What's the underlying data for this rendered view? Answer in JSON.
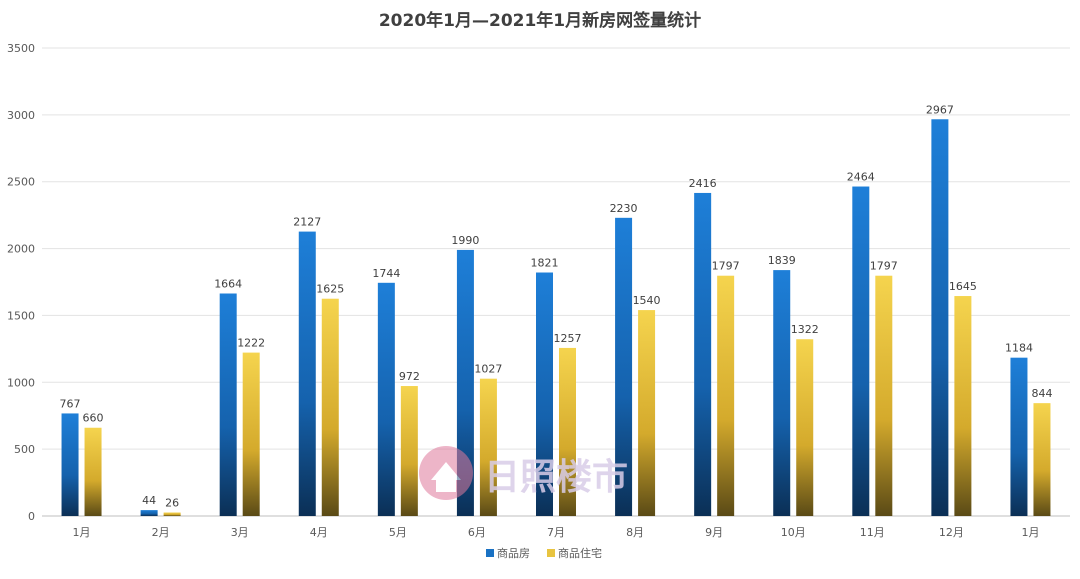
{
  "chart_data": {
    "type": "bar",
    "title": "2020年1月—2021年1月新房网签量统计",
    "categories": [
      "1月",
      "2月",
      "3月",
      "4月",
      "5月",
      "6月",
      "7月",
      "8月",
      "9月",
      "10月",
      "11月",
      "12月",
      "1月"
    ],
    "series": [
      {
        "name": "商品房",
        "values": [
          767,
          44,
          1664,
          2127,
          1744,
          1990,
          1821,
          2230,
          2416,
          1839,
          2464,
          2967,
          1184
        ],
        "color": "#1a72c4"
      },
      {
        "name": "商品住宅",
        "values": [
          660,
          26,
          1222,
          1625,
          972,
          1027,
          1257,
          1540,
          1797,
          1322,
          1797,
          1645,
          844
        ],
        "color": "#e8c440"
      }
    ],
    "ylim": [
      0,
      3500
    ],
    "yticks": [
      0,
      500,
      1000,
      1500,
      2000,
      2500,
      3000,
      3500
    ],
    "grid": true,
    "legend_position": "bottom-center",
    "watermark": "日照楼市"
  }
}
